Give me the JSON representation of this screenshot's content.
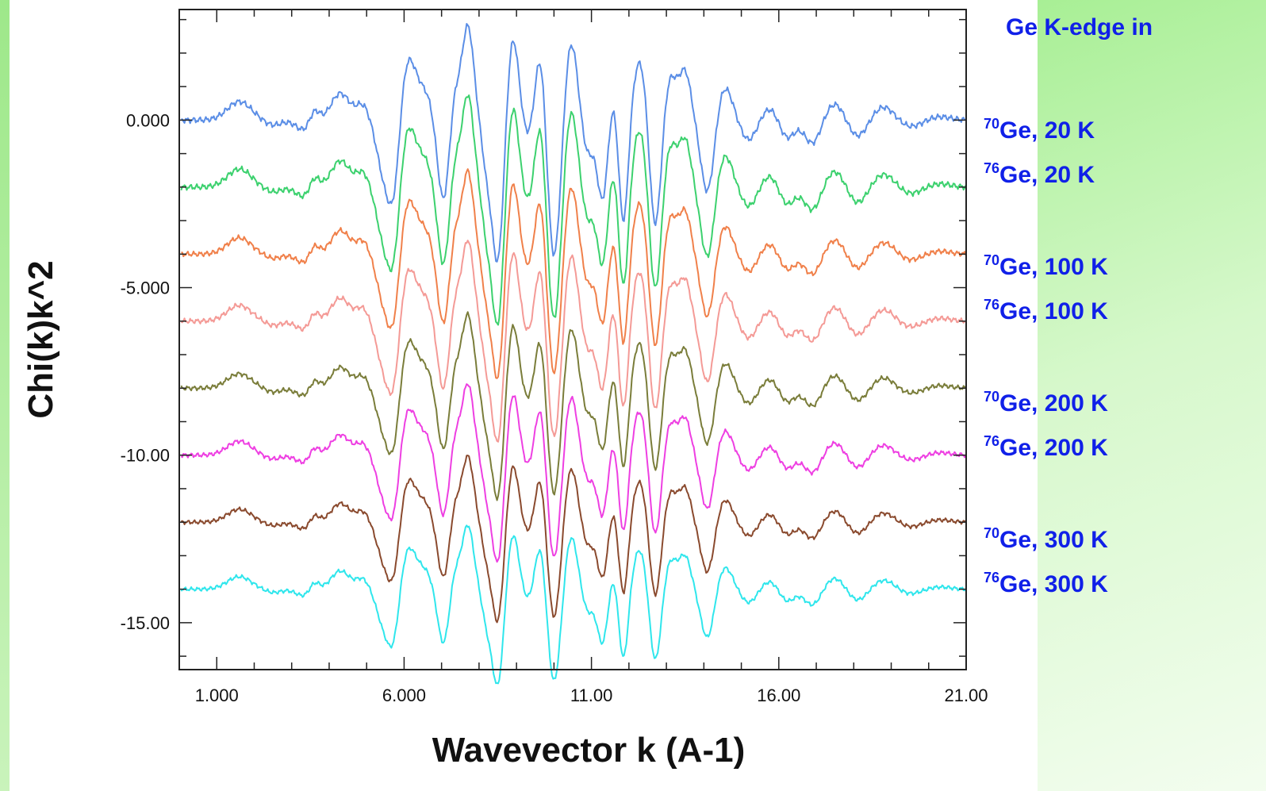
{
  "chart_data": {
    "type": "line",
    "xlabel": "Wavevector k (A-1)",
    "ylabel": "Chi(k)k^2",
    "xlim": [
      0,
      21
    ],
    "ylim": [
      -16.4,
      3.3
    ],
    "x_ticks": [
      "1.000",
      "6.000",
      "11.00",
      "16.00",
      "21.00"
    ],
    "y_ticks": [
      "0.000",
      "-5.000",
      "-10.00",
      "-15.00"
    ],
    "legend_title": "Ge K-edge in",
    "legend": [
      {
        "mass": "70",
        "text": "Ge, 20 K"
      },
      {
        "mass": "76",
        "text": "Ge, 20 K"
      },
      {
        "mass": "70",
        "text": "Ge, 100 K"
      },
      {
        "mass": "76",
        "text": "Ge, 100 K"
      },
      {
        "mass": "70",
        "text": "Ge, 200 K"
      },
      {
        "mass": "76",
        "text": "Ge, 200 K"
      },
      {
        "mass": "70",
        "text": "Ge, 300 K"
      },
      {
        "mass": "76",
        "text": "Ge, 300 K"
      }
    ],
    "series": [
      {
        "offset": 0,
        "amplitude": 1.0,
        "color": "#5b8ee6"
      },
      {
        "offset": -2,
        "amplitude": 0.98,
        "color": "#3cd16e"
      },
      {
        "offset": -4,
        "amplitude": 0.88,
        "color": "#f0804a"
      },
      {
        "offset": -6,
        "amplitude": 0.86,
        "color": "#f49a96"
      },
      {
        "offset": -8,
        "amplitude": 0.78,
        "color": "#7a7d3a"
      },
      {
        "offset": -10,
        "amplitude": 0.76,
        "color": "#ee3fe2"
      },
      {
        "offset": -12,
        "amplitude": 0.7,
        "color": "#8a4a2e"
      },
      {
        "offset": -14,
        "amplitude": 0.68,
        "color": "#2fe6ec"
      }
    ]
  }
}
